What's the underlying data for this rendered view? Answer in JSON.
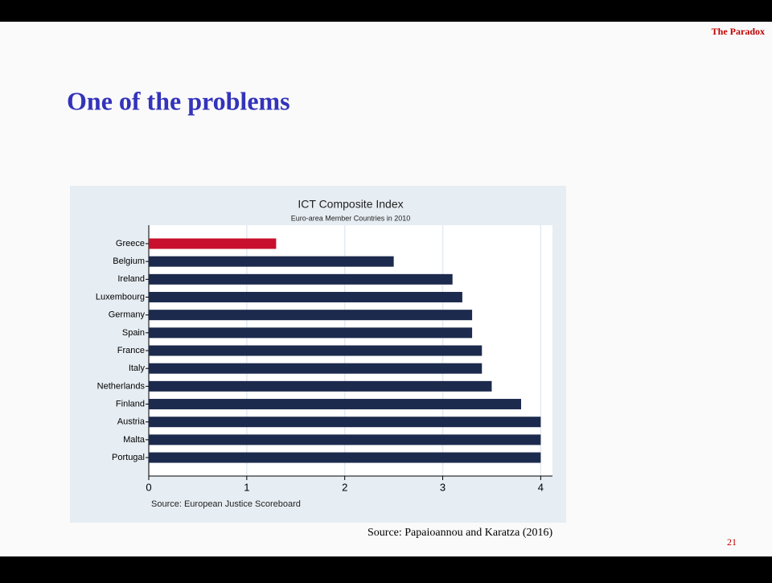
{
  "header": {
    "section": "The Paradox",
    "title": "One of the problems"
  },
  "chart_data": {
    "type": "bar",
    "orientation": "horizontal",
    "title": "ICT Composite Index",
    "subtitle": "Euro-area Member Countries in 2010",
    "categories": [
      "Greece",
      "Belgium",
      "Ireland",
      "Luxembourg",
      "Germany",
      "Spain",
      "France",
      "Italy",
      "Netherlands",
      "Finland",
      "Austria",
      "Malta",
      "Portugal"
    ],
    "values": [
      1.3,
      2.5,
      3.1,
      3.2,
      3.3,
      3.3,
      3.4,
      3.4,
      3.5,
      3.8,
      4,
      4,
      4
    ],
    "colors": [
      "#c8102e",
      "#1c2a4d",
      "#1c2a4d",
      "#1c2a4d",
      "#1c2a4d",
      "#1c2a4d",
      "#1c2a4d",
      "#1c2a4d",
      "#1c2a4d",
      "#1c2a4d",
      "#1c2a4d",
      "#1c2a4d",
      "#1c2a4d"
    ],
    "xlim": [
      0,
      4.12
    ],
    "xticks": [
      0,
      1,
      2,
      3,
      4
    ],
    "grid": true,
    "note": "Source: European Justice Scoreboard"
  },
  "footer": {
    "source": "Source: Papaioannou and Karatza (2016)",
    "page": "21"
  }
}
